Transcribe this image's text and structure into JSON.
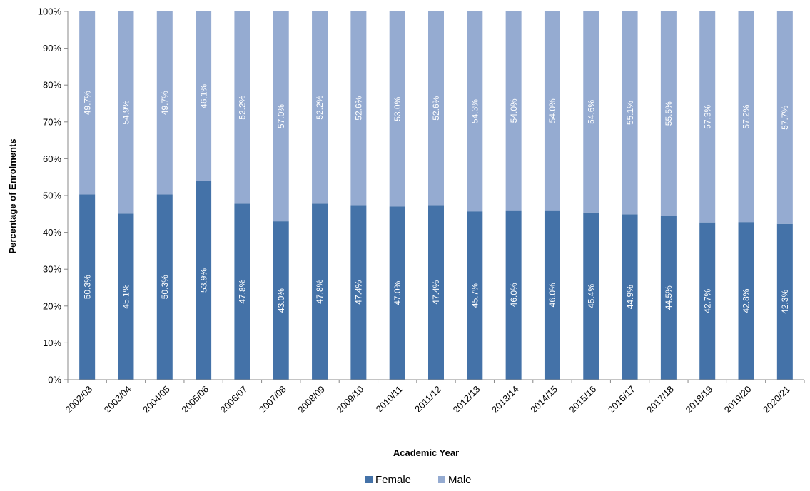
{
  "chart_data": {
    "type": "bar",
    "stacked": true,
    "orientation": "vertical",
    "title": "",
    "xlabel": "Academic Year",
    "ylabel": "Percentage of Enrolments",
    "ylim": [
      0,
      100
    ],
    "y_ticks": [
      "0%",
      "10%",
      "20%",
      "30%",
      "40%",
      "50%",
      "60%",
      "70%",
      "80%",
      "90%",
      "100%"
    ],
    "grid": false,
    "legend_position": "bottom",
    "categories": [
      "2002/03",
      "2003/04",
      "2004/05",
      "2005/06",
      "2006/07",
      "2007/08",
      "2008/09",
      "2009/10",
      "2010/11",
      "2011/12",
      "2012/13",
      "2013/14",
      "2014/15",
      "2015/16",
      "2016/17",
      "2017/18",
      "2018/19",
      "2019/20",
      "2020/21"
    ],
    "series": [
      {
        "name": "Female",
        "color": "#4472a8",
        "values": [
          50.3,
          45.1,
          50.3,
          53.9,
          47.8,
          43.0,
          47.8,
          47.4,
          47.0,
          47.4,
          45.7,
          46.0,
          46.0,
          45.4,
          44.9,
          44.5,
          42.7,
          42.8,
          42.3
        ],
        "labels": [
          "50.3%",
          "45.1%",
          "50.3%",
          "53.9%",
          "47.8%",
          "43.0%",
          "47.8%",
          "47.4%",
          "47.0%",
          "47.4%",
          "45.7%",
          "46.0%",
          "46.0%",
          "45.4%",
          "44.9%",
          "44.5%",
          "42.7%",
          "42.8%",
          "42.3%"
        ]
      },
      {
        "name": "Male",
        "color": "#95abd1",
        "values": [
          49.7,
          54.9,
          49.7,
          46.1,
          52.2,
          57.0,
          52.2,
          52.6,
          53.0,
          52.6,
          54.3,
          54.0,
          54.0,
          54.6,
          55.1,
          55.5,
          57.3,
          57.2,
          57.7
        ],
        "labels": [
          "49.7%",
          "54.9%",
          "49.7%",
          "46.1%",
          "52.2%",
          "57.0%",
          "52.2%",
          "52.6%",
          "53.0%",
          "52.6%",
          "54.3%",
          "54.0%",
          "54.0%",
          "54.6%",
          "55.1%",
          "55.5%",
          "57.3%",
          "57.2%",
          "57.7%"
        ]
      }
    ]
  }
}
